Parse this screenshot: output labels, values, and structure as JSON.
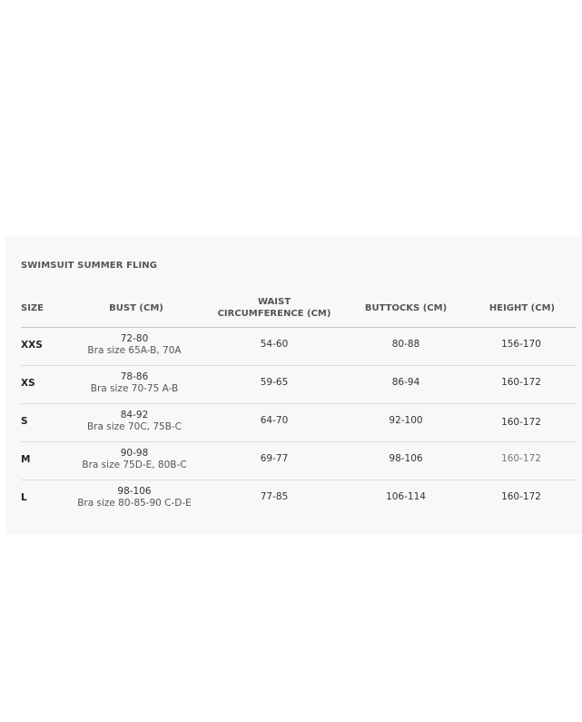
{
  "title": "SWIMSUIT SUMMER FLING",
  "headers": [
    "SIZE",
    "BUST (CM)",
    "WAIST CIRCUMFERENCE (CM)",
    "BUTTOCKS (CM)",
    "HEIGHT (CM)"
  ],
  "header_waist_lines": [
    "WAIST",
    "CIRCUMFERENCE (CM)"
  ],
  "rows": [
    {
      "size": "XXS",
      "bust": "72-80",
      "bra": "Bra size 65A-B, 70A",
      "waist": "54-60",
      "buttocks": "80-88",
      "height": "156-170"
    },
    {
      "size": "XS",
      "bust": "78-86",
      "bra": "Bra size 70-75 A-B",
      "waist": "59-65",
      "buttocks": "86-94",
      "height": "160-172"
    },
    {
      "size": "S",
      "bust": "84-92",
      "bra": "Bra size 70C, 75B-C",
      "waist": "64-70",
      "buttocks": "92-100",
      "height": "160-172"
    },
    {
      "size": "M",
      "bust": "90-98",
      "bra": "Bra size 75D-E, 80B-C",
      "waist": "69-77",
      "buttocks": "98-106",
      "height": "160-172"
    },
    {
      "size": "L",
      "bust": "98-106",
      "bra": "Bra size 80-85-90 C-D-E",
      "waist": "77-85",
      "buttocks": "106-114",
      "height": "160-172"
    }
  ]
}
